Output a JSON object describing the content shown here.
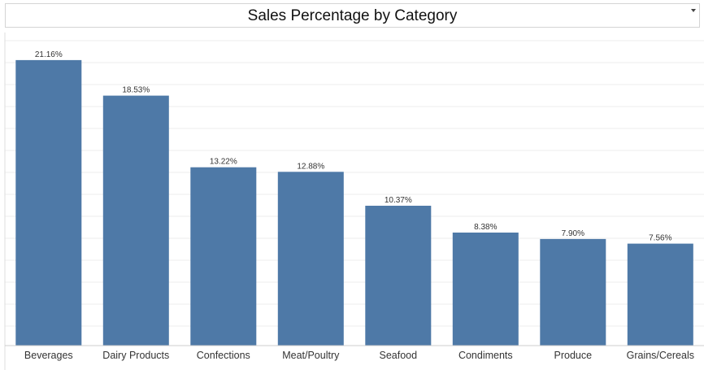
{
  "title": "Sales Percentage by Category",
  "colors": {
    "bar": "#4e79a7",
    "grid": "#eeeeee",
    "axis": "#999999",
    "label": "#333333"
  },
  "chart_data": {
    "type": "bar",
    "title": "Sales Percentage by Category",
    "categories": [
      "Beverages",
      "Dairy Products",
      "Confections",
      "Meat/Poultry",
      "Seafood",
      "Condiments",
      "Produce",
      "Grains/Cereals"
    ],
    "values": [
      21.16,
      18.53,
      13.22,
      12.88,
      10.37,
      8.38,
      7.9,
      7.56
    ],
    "data_labels": [
      "21.16%",
      "18.53%",
      "13.22%",
      "12.88%",
      "10.37%",
      "8.38%",
      "7.90%",
      "7.56%"
    ],
    "xlabel": "",
    "ylabel": "",
    "ylim": [
      0,
      22
    ],
    "grid": true,
    "legend": "none"
  }
}
